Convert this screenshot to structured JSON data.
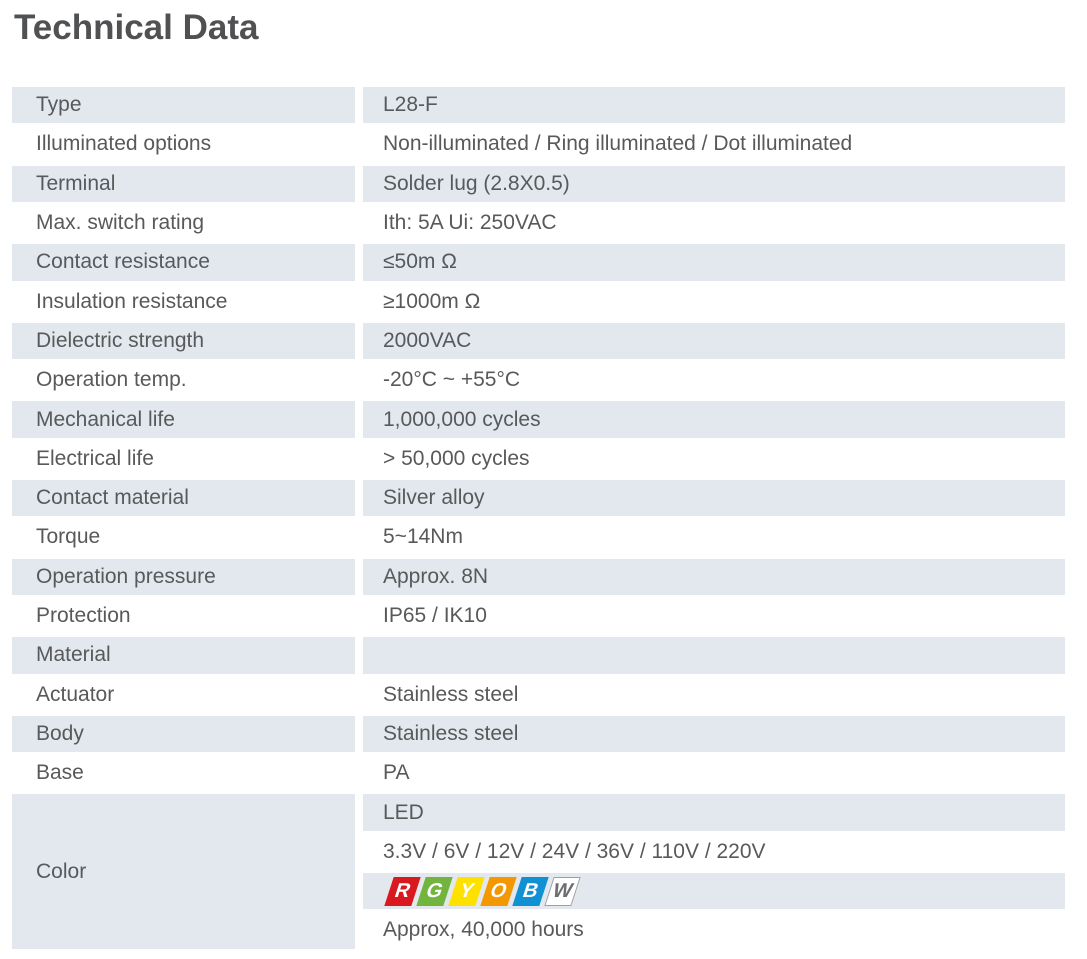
{
  "page": {
    "title": "Technical Data"
  },
  "colors": {
    "row_shade": "#e2e8ed",
    "text": "#58595b",
    "title_text": "#505153"
  },
  "table": {
    "rows": [
      {
        "label": "Type",
        "value": "L28-F"
      },
      {
        "label": "Illuminated options",
        "value": "Non-illuminated / Ring illuminated / Dot illuminated"
      },
      {
        "label": "Terminal",
        "value": "Solder lug (2.8X0.5)"
      },
      {
        "label": "Max. switch rating",
        "value": "Ith: 5A Ui: 250VAC"
      },
      {
        "label": "Contact resistance",
        "value": "≤50m Ω"
      },
      {
        "label": "Insulation resistance",
        "value": "≥1000m Ω"
      },
      {
        "label": "Dielectric strength",
        "value": "2000VAC"
      },
      {
        "label": "Operation temp.",
        "value": "-20°C ~ +55°C"
      },
      {
        "label": "Mechanical life",
        "value": "1,000,000 cycles"
      },
      {
        "label": "Electrical life",
        "value": "> 50,000 cycles"
      },
      {
        "label": "Contact material",
        "value": "Silver alloy"
      },
      {
        "label": "Torque",
        "value": "5~14Nm"
      },
      {
        "label": "Operation pressure",
        "value": "Approx. 8N"
      },
      {
        "label": "Protection",
        "value": "IP65 / IK10"
      },
      {
        "label": "Material",
        "value": ""
      },
      {
        "label": "Actuator",
        "value": "Stainless steel"
      },
      {
        "label": "Body",
        "value": "Stainless steel"
      },
      {
        "label": "Base",
        "value": "PA"
      }
    ],
    "color_row": {
      "label": "Color",
      "led": "LED",
      "voltages": "3.3V / 6V / 12V / 24V / 36V / 110V / 220V",
      "lifetime": "Approx, 40,000 hours",
      "led_colors": [
        {
          "letter": "R",
          "name": "red",
          "bg": "#d91920",
          "fg": "#ffffff"
        },
        {
          "letter": "G",
          "name": "green",
          "bg": "#72b43e",
          "fg": "#ffffff"
        },
        {
          "letter": "Y",
          "name": "yellow",
          "bg": "#ffe100",
          "fg": "#ffffff"
        },
        {
          "letter": "O",
          "name": "orange",
          "bg": "#f39800",
          "fg": "#ffffff"
        },
        {
          "letter": "B",
          "name": "blue",
          "bg": "#1191d3",
          "fg": "#ffffff"
        },
        {
          "letter": "W",
          "name": "white",
          "bg": "#ffffff",
          "fg": "#6d6e71",
          "border": "#9d9fa2"
        }
      ]
    }
  }
}
